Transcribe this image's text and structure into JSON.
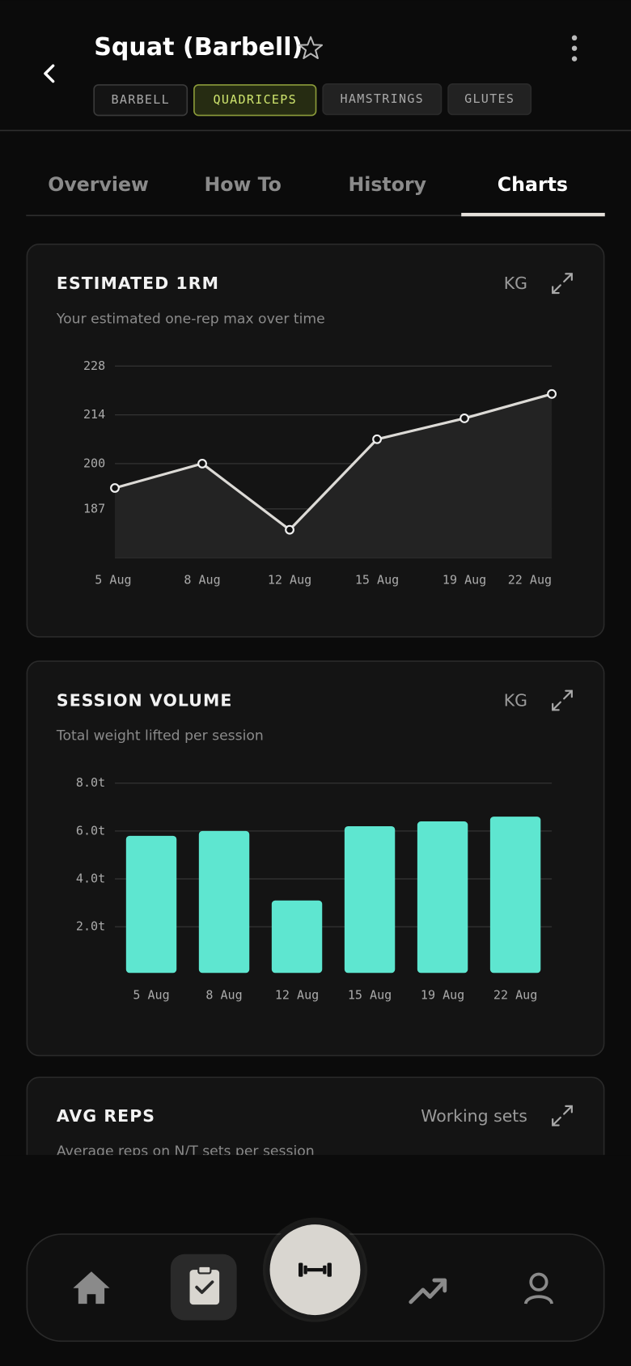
{
  "header": {
    "title": "Squat (Barbell)",
    "tags": [
      "BARBELL",
      "QUADRICEPS",
      "HAMSTRINGS",
      "GLUTES"
    ]
  },
  "tabs": [
    "Overview",
    "How To",
    "History",
    "Charts"
  ],
  "chart_data": [
    {
      "type": "line",
      "title": "ESTIMATED 1RM",
      "unit": "KG",
      "subtitle": "Your estimated one-rep max over time",
      "categories": [
        "5 Aug",
        "8 Aug",
        "12 Aug",
        "15 Aug",
        "19 Aug",
        "22 Aug"
      ],
      "values": [
        193,
        200,
        181,
        207,
        213,
        220
      ],
      "color": "#dcdad6",
      "ylim": [
        173,
        228
      ],
      "yticks": [
        228,
        214,
        200,
        187
      ],
      "grid": true
    },
    {
      "type": "bar",
      "title": "SESSION VOLUME",
      "unit": "KG",
      "subtitle": "Total weight lifted per session",
      "categories": [
        "5 Aug",
        "8 Aug",
        "12 Aug",
        "15 Aug",
        "19 Aug",
        "22 Aug"
      ],
      "values": [
        5.8,
        6.0,
        3.1,
        6.2,
        6.4,
        6.6
      ],
      "color": "#5ee6d0",
      "ylim": [
        0,
        8
      ],
      "yticks": [
        {
          "value": 8,
          "label": "8.0t"
        },
        {
          "value": 6,
          "label": "6.0t"
        },
        {
          "value": 4,
          "label": "4.0t"
        },
        {
          "value": 2,
          "label": "2.0t"
        }
      ],
      "grid": true
    }
  ],
  "avg_reps_card": {
    "title": "AVG REPS",
    "unit": "Working sets",
    "subtitle": "Average reps on N/T sets per session"
  }
}
